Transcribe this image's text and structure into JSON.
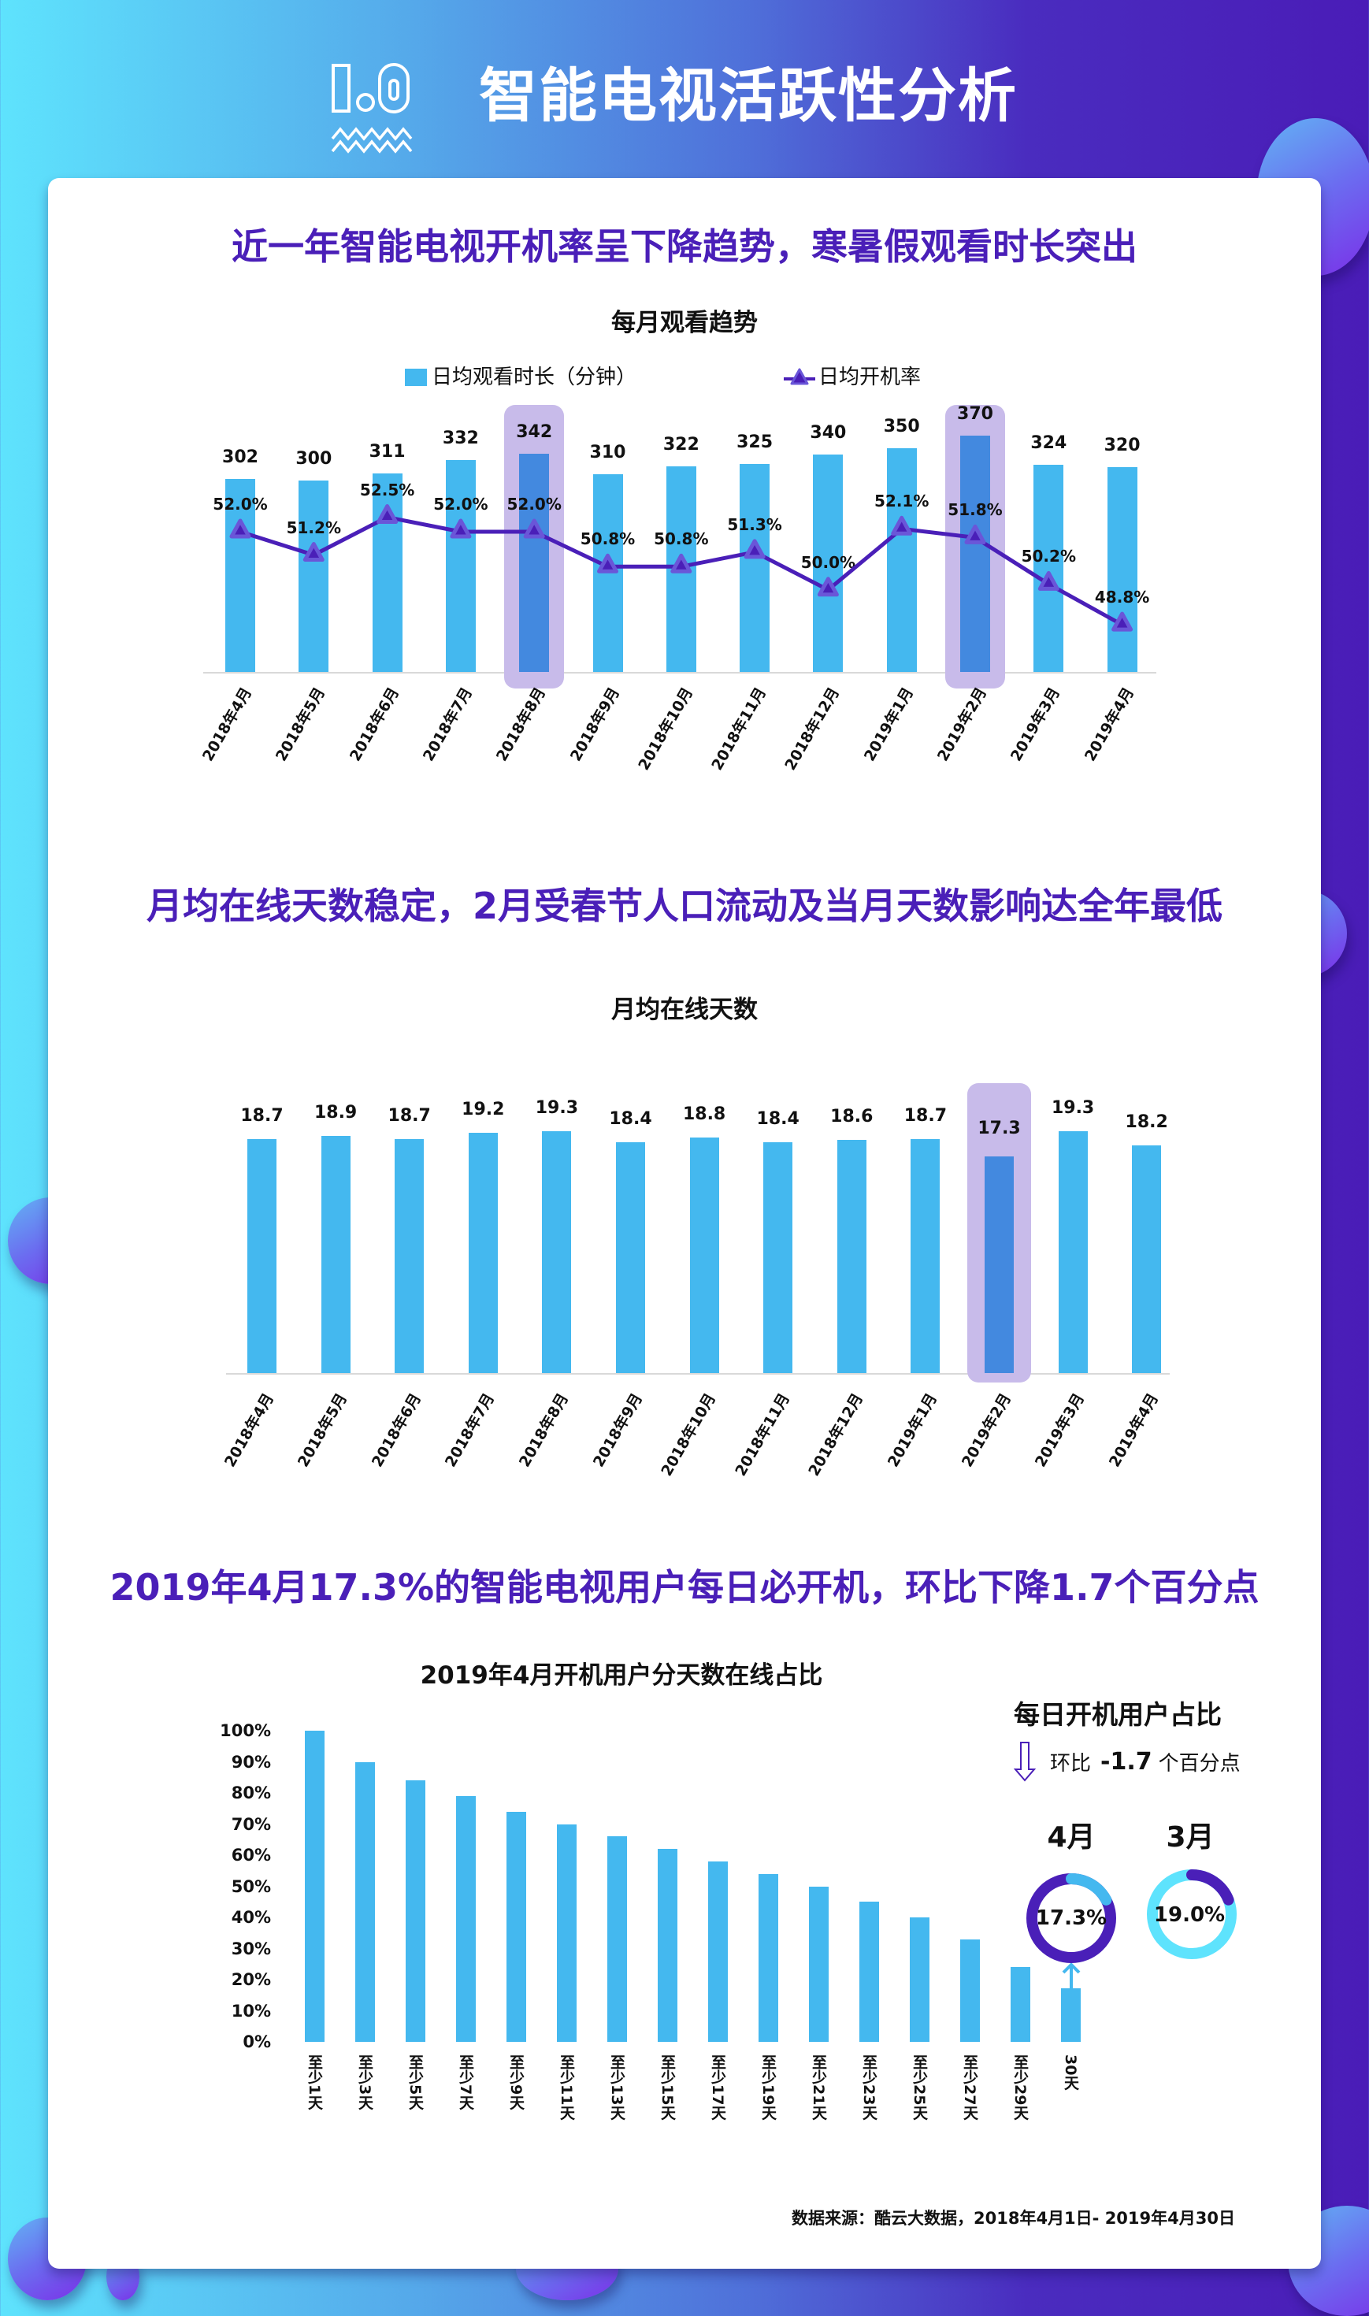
{
  "header": {
    "section_number": "1.0",
    "title": "智能电视活跃性分析"
  },
  "colors": {
    "bar": "#44b8ef",
    "bar_highlight": "#4389df",
    "highlight_box": "#c8bbea",
    "line": "#4a1fb8",
    "section_title": "#4a1fb8",
    "donut_april_main": "#4a1fb8",
    "donut_april_part": "#44b8ef",
    "donut_march_main": "#5ee3fd",
    "donut_march_part": "#4a1fb8"
  },
  "section1": {
    "headline": "近一年智能电视开机率呈下降趋势，寒暑假观看时长突出",
    "chart_title": "每月观看趋势",
    "legend_bar": "日均观看时长（分钟）",
    "legend_line": "日均开机率"
  },
  "section2": {
    "headline": "月均在线天数稳定，2月受春节人口流动及当月天数影响达全年最低",
    "chart_title": "月均在线天数"
  },
  "section3": {
    "headline": "2019年4月17.3%的智能电视用户每日必开机，环比下降1.7个百分点",
    "chart_title": "2019年4月开机用户分天数在线占比",
    "side_title": "每日开机用户占比",
    "mom_prefix": "环比",
    "mom_value": "-1.7",
    "mom_suffix": "个百分点",
    "donut_april_label": "4月",
    "donut_april_value": "17.3%",
    "donut_march_label": "3月",
    "donut_march_value": "19.0%"
  },
  "footer": {
    "source": "数据来源：酷云大数据，2018年4月1日- 2019年4月30日"
  },
  "chart_data": [
    {
      "type": "bar+line",
      "title": "每月观看趋势",
      "categories": [
        "2018年4月",
        "2018年5月",
        "2018年6月",
        "2018年7月",
        "2018年8月",
        "2018年9月",
        "2018年10月",
        "2018年11月",
        "2018年12月",
        "2019年1月",
        "2019年2月",
        "2019年3月",
        "2019年4月"
      ],
      "series": [
        {
          "name": "日均观看时长（分钟）",
          "type": "bar",
          "values": [
            302,
            300,
            311,
            332,
            342,
            310,
            322,
            325,
            340,
            350,
            370,
            324,
            320
          ],
          "labels": [
            "302",
            "300",
            "311",
            "332",
            "342",
            "310",
            "322",
            "325",
            "340",
            "350",
            "370",
            "324",
            "320"
          ]
        },
        {
          "name": "日均开机率",
          "type": "line",
          "values": [
            52.0,
            51.2,
            52.5,
            52.0,
            52.0,
            50.8,
            50.8,
            51.3,
            50.0,
            52.1,
            51.8,
            50.2,
            48.8
          ],
          "labels": [
            "52.0%",
            "51.2%",
            "52.5%",
            "52.0%",
            "52.0%",
            "50.8%",
            "50.8%",
            "51.3%",
            "50.0%",
            "52.1%",
            "51.8%",
            "50.2%",
            "48.8%"
          ]
        }
      ],
      "highlighted": [
        "2018年8月",
        "2019年2月"
      ],
      "legend_position": "top"
    },
    {
      "type": "bar",
      "title": "月均在线天数",
      "categories": [
        "2018年4月",
        "2018年5月",
        "2018年6月",
        "2018年7月",
        "2018年8月",
        "2018年9月",
        "2018年10月",
        "2018年11月",
        "2018年12月",
        "2019年1月",
        "2019年2月",
        "2019年3月",
        "2019年4月"
      ],
      "values": [
        18.7,
        18.9,
        18.7,
        19.2,
        19.3,
        18.4,
        18.8,
        18.4,
        18.6,
        18.7,
        17.3,
        19.3,
        18.2
      ],
      "labels": [
        "18.7",
        "18.9",
        "18.7",
        "19.2",
        "19.3",
        "18.4",
        "18.8",
        "18.4",
        "18.6",
        "18.7",
        "17.3",
        "19.3",
        "18.2"
      ],
      "highlighted": [
        "2019年2月"
      ]
    },
    {
      "type": "bar",
      "title": "2019年4月开机用户分天数在线占比",
      "categories": [
        "至少1天",
        "至少3天",
        "至少5天",
        "至少7天",
        "至少9天",
        "至少11天",
        "至少13天",
        "至少15天",
        "至少17天",
        "至少19天",
        "至少21天",
        "至少23天",
        "至少25天",
        "至少27天",
        "至少29天",
        "30天"
      ],
      "values": [
        100,
        90,
        84,
        79,
        74,
        70,
        66,
        62,
        58,
        54,
        50,
        45,
        40,
        33,
        24,
        17.3
      ],
      "yticks": [
        "100%",
        "90%",
        "80%",
        "70%",
        "60%",
        "50%",
        "40%",
        "30%",
        "20%",
        "10%",
        "0%"
      ],
      "ylim": [
        0,
        100
      ],
      "ylabel": "",
      "xlabel": ""
    },
    {
      "type": "pie",
      "title": "每日开机用户占比",
      "categories": [
        "4月",
        "3月"
      ],
      "values": [
        17.3,
        19.0
      ]
    }
  ]
}
